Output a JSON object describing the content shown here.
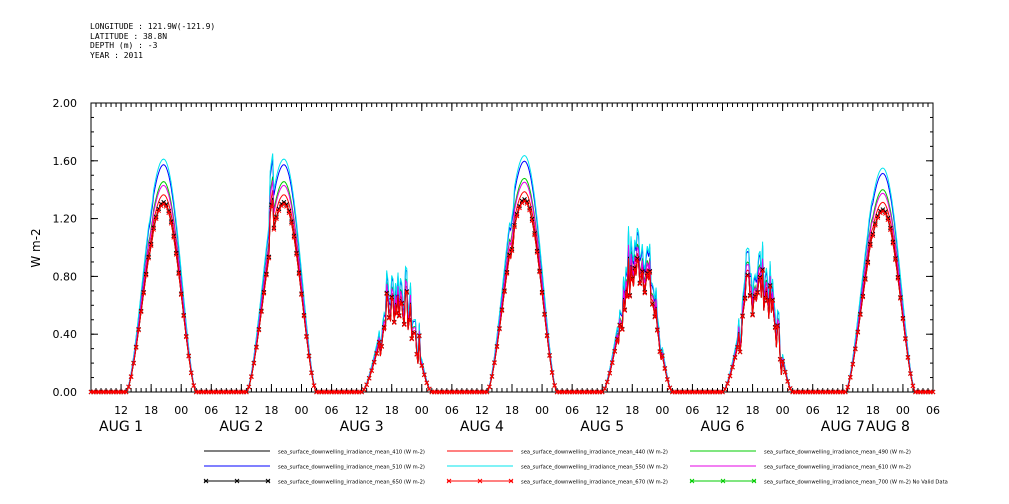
{
  "header": {
    "longitude": "LONGITUDE : 121.9W(-121.9)",
    "latitude": "LATITUDE : 38.8N",
    "depth": "DEPTH (m) : -3",
    "year": "YEAR : 2011"
  },
  "chart_data": {
    "type": "line",
    "title": "",
    "ylabel": "W m-2",
    "xlabel": "",
    "ylim": [
      0,
      2.0
    ],
    "yticks": [
      0.0,
      0.4,
      0.8,
      1.2,
      1.6,
      2.0
    ],
    "ytick_labels": [
      "0.00",
      "0.40",
      "0.80",
      "1.20",
      "1.60",
      "2.00"
    ],
    "xlim_hours": [
      6,
      174
    ],
    "xticks": [
      {
        "h": 12,
        "label": "12"
      },
      {
        "h": 18,
        "label": "18"
      },
      {
        "h": 24,
        "label": "00"
      },
      {
        "h": 30,
        "label": "06"
      },
      {
        "h": 36,
        "label": "12"
      },
      {
        "h": 42,
        "label": "18"
      },
      {
        "h": 48,
        "label": "00"
      },
      {
        "h": 54,
        "label": "06"
      },
      {
        "h": 60,
        "label": "12"
      },
      {
        "h": 66,
        "label": "18"
      },
      {
        "h": 72,
        "label": "00"
      },
      {
        "h": 78,
        "label": "06"
      },
      {
        "h": 84,
        "label": "12"
      },
      {
        "h": 90,
        "label": "18"
      },
      {
        "h": 96,
        "label": "00"
      },
      {
        "h": 102,
        "label": "06"
      },
      {
        "h": 108,
        "label": "12"
      },
      {
        "h": 114,
        "label": "18"
      },
      {
        "h": 120,
        "label": "00"
      },
      {
        "h": 126,
        "label": "06"
      },
      {
        "h": 132,
        "label": "12"
      },
      {
        "h": 138,
        "label": "18"
      },
      {
        "h": 144,
        "label": "00"
      },
      {
        "h": 150,
        "label": "06"
      },
      {
        "h": 156,
        "label": "12"
      },
      {
        "h": 162,
        "label": "18"
      },
      {
        "h": 168,
        "label": "00"
      },
      {
        "h": 174,
        "label": "06"
      }
    ],
    "date_labels": [
      {
        "h": 12,
        "label": "AUG  1"
      },
      {
        "h": 36,
        "label": "AUG  2"
      },
      {
        "h": 60,
        "label": "AUG  3"
      },
      {
        "h": 84,
        "label": "AUG  4"
      },
      {
        "h": 108,
        "label": "AUG  5"
      },
      {
        "h": 132,
        "label": "AUG  6"
      },
      {
        "h": 156,
        "label": "AUG  7"
      },
      {
        "h": 165,
        "label": "AUG  8"
      }
    ],
    "series": [
      {
        "name": "sea_surface_downwelling_irradiance_mean_410 (W m-2)",
        "color": "#000000",
        "marker": "none",
        "scale": 1.0
      },
      {
        "name": "sea_surface_downwelling_irradiance_mean_440 (W m-2)",
        "color": "#ff0000",
        "marker": "none",
        "scale": 1.05
      },
      {
        "name": "sea_surface_downwelling_irradiance_mean_490 (W m-2)",
        "color": "#00cc00",
        "marker": "none",
        "scale": 1.12
      },
      {
        "name": "sea_surface_downwelling_irradiance_mean_510 (W m-2)",
        "color": "#0000ff",
        "marker": "none",
        "scale": 1.21
      },
      {
        "name": "sea_surface_downwelling_irradiance_mean_550 (W m-2)",
        "color": "#00e5ee",
        "marker": "none",
        "scale": 1.24
      },
      {
        "name": "sea_surface_downwelling_irradiance_mean_610 (W m-2)",
        "color": "#e600e6",
        "marker": "none",
        "scale": 1.1
      },
      {
        "name": "sea_surface_downwelling_irradiance_mean_650 (W m-2)",
        "color": "#000000",
        "marker": "x",
        "scale": 1.01
      },
      {
        "name": "sea_surface_downwelling_irradiance_mean_670 (W m-2)",
        "color": "#ff0000",
        "marker": "x",
        "scale": 1.0
      },
      {
        "name": "sea_surface_downwelling_irradiance_mean_700 (W m-2) No Valid Data",
        "color": "#00cc00",
        "marker": "x",
        "scale": 0
      }
    ],
    "daily_peaks": [
      {
        "day": 1,
        "peak_hour": 20.5,
        "peak": 1.3,
        "spike": 1.28,
        "noisy": false
      },
      {
        "day": 2,
        "peak_hour": 44.5,
        "peak": 1.3,
        "spike": 1.55,
        "noisy": false
      },
      {
        "day": 3,
        "peak_hour": 67.5,
        "peak": 0.62,
        "spike": 0.7,
        "noisy": true
      },
      {
        "day": 4,
        "peak_hour": 92.5,
        "peak": 1.32,
        "spike": 1.25,
        "noisy": false
      },
      {
        "day": 5,
        "peak_hour": 115.5,
        "peak": 0.85,
        "spike": 0.95,
        "noisy": true
      },
      {
        "day": 6,
        "peak_hour": 139.5,
        "peak": 0.72,
        "spike": 0.85,
        "noisy": true
      },
      {
        "day": 7,
        "peak_hour": 164.0,
        "peak": 1.25,
        "spike": 1.27,
        "noisy": false
      }
    ]
  }
}
